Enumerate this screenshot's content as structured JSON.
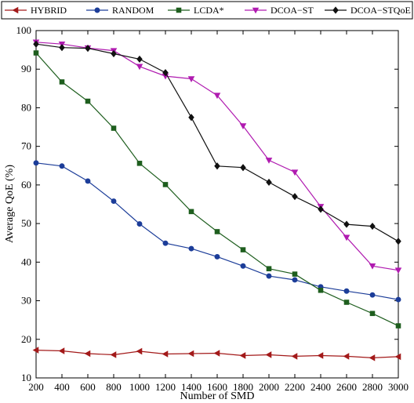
{
  "chart_data": {
    "type": "line",
    "xlabel": "Number of SMD",
    "ylabel": "Average QoE (%)",
    "xlim": [
      200,
      3000
    ],
    "ylim": [
      10,
      100
    ],
    "x": [
      200,
      400,
      600,
      800,
      1000,
      1200,
      1400,
      1600,
      1800,
      2000,
      2200,
      2400,
      2600,
      2800,
      3000
    ],
    "xticks": [
      "200",
      "400",
      "600",
      "800",
      "1000",
      "1200",
      "1400",
      "1600",
      "1800",
      "2000",
      "2200",
      "2400",
      "2600",
      "2800",
      "3000"
    ],
    "yticks": [
      "10",
      "20",
      "30",
      "40",
      "50",
      "60",
      "70",
      "80",
      "90",
      "100"
    ],
    "grid": false,
    "legend_position": "top",
    "series": [
      {
        "name": "HYBRID",
        "color": "#a31a1a",
        "marker": "triangle-left",
        "values": [
          17.2,
          17.0,
          16.3,
          16.0,
          16.9,
          16.2,
          16.3,
          16.4,
          15.8,
          16.0,
          15.6,
          15.8,
          15.6,
          15.2,
          15.5
        ]
      },
      {
        "name": "RANDOM",
        "color": "#1c3d99",
        "marker": "circle",
        "values": [
          65.7,
          64.9,
          61.0,
          55.8,
          49.9,
          44.9,
          43.5,
          41.4,
          39.0,
          36.4,
          35.4,
          33.6,
          32.5,
          31.5,
          30.3
        ]
      },
      {
        "name": "LCDA*",
        "color": "#1e5e1e",
        "marker": "square",
        "values": [
          94.2,
          86.7,
          81.7,
          74.7,
          65.6,
          60.1,
          53.1,
          47.9,
          43.2,
          38.3,
          36.9,
          32.7,
          29.6,
          26.7,
          23.5
        ]
      },
      {
        "name": "DCOA−ST",
        "color": "#b01bb0",
        "marker": "triangle-down",
        "values": [
          97.0,
          96.5,
          95.5,
          94.8,
          90.7,
          88.2,
          87.5,
          83.2,
          75.3,
          66.4,
          63.3,
          54.4,
          46.4,
          39.0,
          37.9
        ]
      },
      {
        "name": "DCOA−STQoE",
        "color": "#111111",
        "marker": "diamond",
        "values": [
          96.5,
          95.6,
          95.4,
          94.0,
          92.6,
          89.1,
          77.5,
          64.9,
          64.5,
          60.7,
          57.0,
          53.7,
          49.8,
          49.3,
          45.4
        ]
      }
    ]
  }
}
